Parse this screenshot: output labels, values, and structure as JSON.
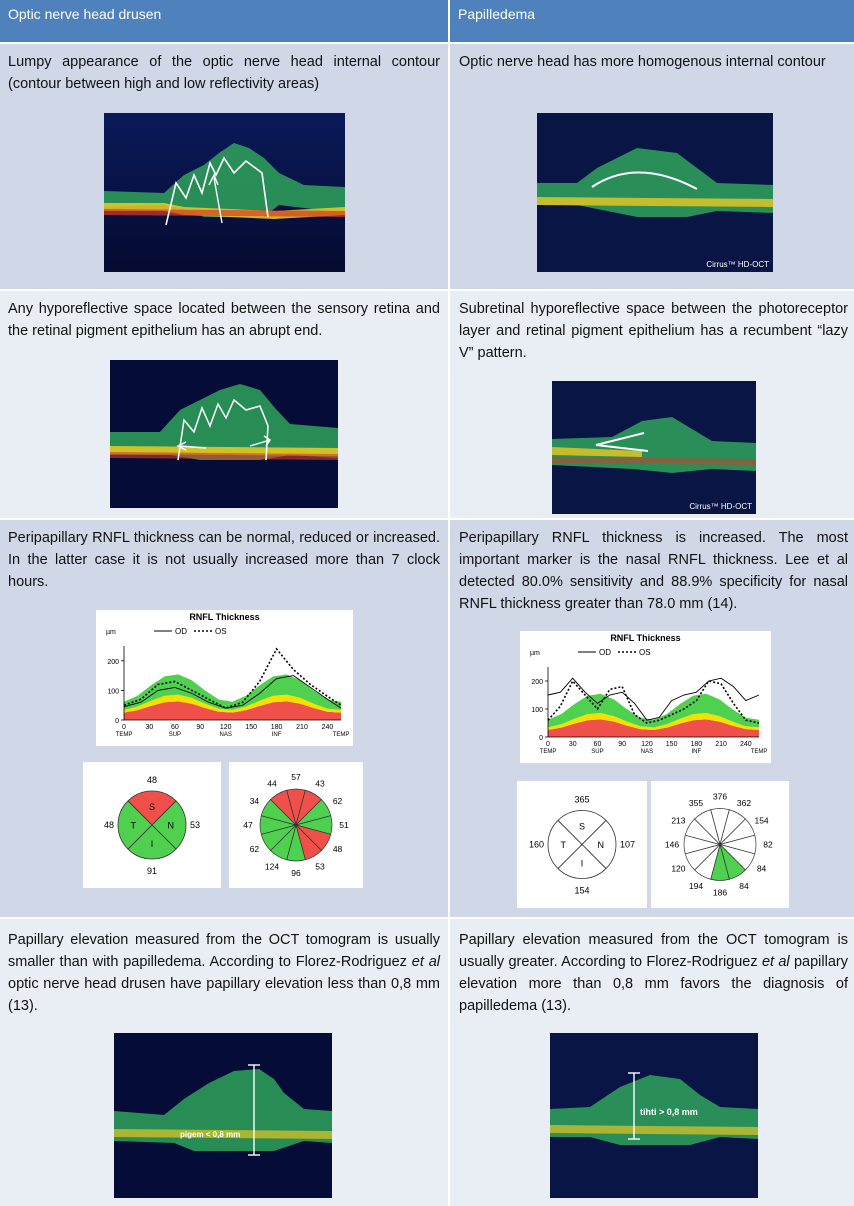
{
  "header": {
    "left": "Optic nerve head drusen",
    "right": "Papilledema"
  },
  "rows": [
    {
      "left": "Lumpy appearance of the optic nerve head internal contour (contour between high and low reflectivity areas)",
      "right": "Optic nerve head has more homogenous internal contour",
      "right_caption": "Cirrus™ HD-OCT"
    },
    {
      "left": "Any hyporeflective space located between the sensory retina and the retinal pigment epithelium has an abrupt end.",
      "right": "Subretinal hyporeflective space between the photoreceptor layer and retinal pigment epithelium has a recumbent “lazy V” pattern.",
      "right_caption": "Cirrus™ HD-OCT"
    },
    {
      "left": "Peripapillary RNFL thickness can be normal, reduced or increased. In the latter case it is not usually increased more than 7 clock hours.",
      "right": "Peripapillary RNFL thickness is increased. The most important marker is the nasal RNFL thickness. Lee et al detected 80.0% sensitivity and 88.9% specificity for nasal RNFL thickness greater than 78.0 mm (14)."
    },
    {
      "left_pre": "Papillary elevation measured from the OCT tomogram is usually smaller than with papilledema. According to Florez-Rodriguez ",
      "left_em": "et al",
      "left_post": " optic nerve head drusen have papillary elevation less than 0,8 mm (13).",
      "right_pre": "Papillary elevation measured from the OCT tomogram is usually greater. According to Florez-Rodriguez ",
      "right_em": "et al",
      "right_post": " papillary elevation more than 0,8 mm favors the diagnosis of papilledema (13).",
      "left_label": "pigem < 0,8 mm",
      "right_label": "tihti > 0,8 mm"
    }
  ],
  "chart_data": [
    {
      "type": "line",
      "title": "RNFL Thickness",
      "ylabel": "µm",
      "legend": [
        "OD",
        "OS"
      ],
      "x": [
        0,
        30,
        60,
        90,
        120,
        150,
        180,
        210,
        240
      ],
      "x_tick_labels": [
        "0",
        "30",
        "60",
        "90",
        "120",
        "150",
        "180",
        "210",
        "240"
      ],
      "x_region_labels": [
        "TEMP",
        "SUP",
        "NAS",
        "INF",
        "TEMP"
      ],
      "y_ticks": [
        0,
        100,
        200
      ],
      "ylim": [
        0,
        250
      ],
      "series": [
        {
          "name": "OD",
          "x": [
            0,
            20,
            40,
            60,
            80,
            100,
            120,
            140,
            160,
            180,
            200,
            220,
            240,
            256
          ],
          "values": [
            45,
            60,
            100,
            110,
            90,
            60,
            40,
            50,
            90,
            140,
            150,
            110,
            70,
            40
          ]
        },
        {
          "name": "OS",
          "x": [
            0,
            20,
            40,
            60,
            80,
            100,
            120,
            140,
            160,
            180,
            200,
            220,
            240,
            256
          ],
          "values": [
            50,
            70,
            120,
            130,
            100,
            70,
            40,
            60,
            130,
            240,
            170,
            120,
            80,
            50
          ]
        }
      ],
      "quadrants": {
        "S": 48,
        "N": 53,
        "I": 91,
        "T": 48
      },
      "clock_hours": [
        57,
        43,
        62,
        51,
        48,
        53,
        96,
        124,
        62,
        47,
        34,
        44
      ]
    },
    {
      "type": "line",
      "title": "RNFL Thickness",
      "ylabel": "µm",
      "legend": [
        "OD",
        "OS"
      ],
      "x": [
        0,
        30,
        60,
        90,
        120,
        150,
        180,
        210,
        240
      ],
      "x_tick_labels": [
        "0",
        "30",
        "60",
        "90",
        "120",
        "150",
        "180",
        "210",
        "240"
      ],
      "x_region_labels": [
        "TEMP",
        "SUP",
        "NAS",
        "INF",
        "TEMP"
      ],
      "y_ticks": [
        0,
        100,
        200
      ],
      "ylim": [
        0,
        250
      ],
      "series": [
        {
          "name": "OD",
          "x": [
            0,
            15,
            30,
            45,
            60,
            75,
            90,
            105,
            120,
            135,
            150,
            165,
            180,
            195,
            210,
            225,
            240,
            256
          ],
          "values": [
            150,
            160,
            210,
            160,
            120,
            150,
            160,
            120,
            60,
            70,
            130,
            150,
            160,
            200,
            210,
            180,
            130,
            150
          ]
        },
        {
          "name": "OS",
          "x": [
            0,
            15,
            30,
            45,
            60,
            75,
            90,
            105,
            120,
            135,
            150,
            165,
            180,
            195,
            210,
            225,
            240,
            256
          ],
          "values": [
            60,
            110,
            200,
            150,
            100,
            170,
            180,
            80,
            50,
            60,
            80,
            100,
            130,
            200,
            190,
            120,
            60,
            50
          ]
        }
      ],
      "quadrants": {
        "S": 365,
        "N": 107,
        "I": 154,
        "T": 160
      },
      "clock_hours": [
        376,
        362,
        154,
        82,
        84,
        84,
        186,
        194,
        120,
        146,
        213,
        355
      ]
    }
  ],
  "quadrant_labels": {
    "S": "S",
    "N": "N",
    "I": "I",
    "T": "T"
  },
  "colors": {
    "header": "#4f81bd",
    "row_dark": "#d0d8e8",
    "row_light": "#e9edf4",
    "normal_green": "#4fd04f",
    "borderline_yellow": "#f5e000",
    "abnormal_red": "#f0504a"
  }
}
